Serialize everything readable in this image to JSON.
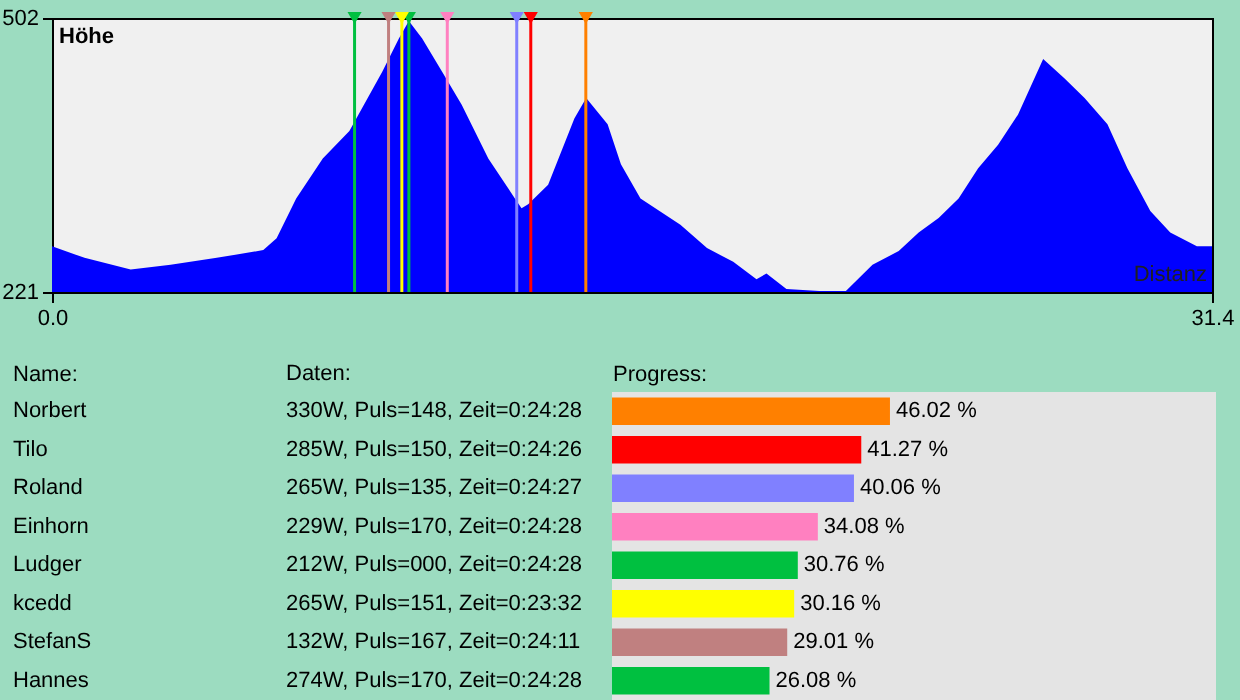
{
  "chart_data": [
    {
      "type": "area",
      "ylabel": "Höhe",
      "xlabel": "Distanz",
      "xlim": [
        0,
        31.4
      ],
      "ylim": [
        221,
        502
      ],
      "xticks": [
        {
          "value": 0,
          "label": "0.0"
        },
        {
          "value": 31.4,
          "label": "31.4"
        }
      ],
      "yticks": [
        221,
        502
      ],
      "grid": false,
      "x": [
        0,
        0.88,
        2.13,
        3.21,
        4.46,
        5.72,
        6.08,
        6.61,
        7.33,
        8.05,
        8.94,
        9.39,
        9.66,
        10.02,
        10.56,
        11.09,
        11.81,
        12.53,
        12.71,
        12.89,
        13.43,
        14.14,
        14.46,
        15.04,
        15.4,
        15.93,
        17.01,
        17.73,
        18.44,
        19.07,
        19.34,
        19.88,
        20.77,
        21.49,
        22.21,
        22.92,
        23.46,
        24.0,
        24.54,
        25.07,
        25.61,
        26.15,
        26.83,
        27.41,
        27.95,
        28.57,
        29.11,
        29.73,
        30.27,
        30.99,
        31.4
      ],
      "series": [
        {
          "color": "#0000ff",
          "values": [
            268,
            256,
            244,
            249,
            256,
            264,
            276,
            317,
            358,
            386,
            447,
            481,
            499,
            481,
            447,
            413,
            358,
            317,
            307,
            311,
            331,
            399,
            420,
            393,
            352,
            317,
            290,
            266,
            252,
            234,
            240,
            224,
            222,
            222,
            249,
            263,
            282,
            297,
            317,
            348,
            372,
            403,
            460,
            440,
            420,
            393,
            348,
            304,
            282,
            268,
            268
          ]
        }
      ],
      "ref_lines": [
        {
          "axis": "x",
          "value": 14.45,
          "color": "#ff8000"
        },
        {
          "axis": "x",
          "value": 12.96,
          "color": "#ff0000"
        },
        {
          "axis": "x",
          "value": 12.58,
          "color": "#8080ff"
        },
        {
          "axis": "x",
          "value": 10.7,
          "color": "#ff80c0"
        },
        {
          "axis": "x",
          "value": 9.66,
          "color": "#00c040"
        },
        {
          "axis": "x",
          "value": 9.47,
          "color": "#ffff00"
        },
        {
          "axis": "x",
          "value": 9.11,
          "color": "#c08080"
        },
        {
          "axis": "x",
          "value": 8.19,
          "color": "#00c040"
        }
      ]
    },
    {
      "type": "bar",
      "orientation": "horizontal",
      "ylabel": "Name:",
      "xlabel": "Progress:",
      "xlim": [
        0,
        100
      ],
      "tick_labels": "y",
      "categories": [
        "Norbert",
        "Tilo",
        "Roland",
        "Einhorn",
        "Ludger",
        "kcedd",
        "StefanS",
        "Hannes"
      ],
      "values": [
        46.02,
        41.27,
        40.06,
        34.08,
        30.76,
        30.16,
        29.01,
        26.08
      ],
      "colors": [
        "#ff8000",
        "#ff0000",
        "#8080ff",
        "#ff80c0",
        "#00c040",
        "#ffff00",
        "#c08080",
        "#00c040"
      ],
      "value_labels": [
        "46.02 %",
        "41.27 %",
        "40.06 %",
        "34.08 %",
        "30.76 %",
        "30.16 %",
        "29.01 %",
        "26.08 %"
      ],
      "annotations": [
        "Daten:",
        "330W, Puls=148, Zeit=0:24:28",
        "285W, Puls=150, Zeit=0:24:26",
        "265W, Puls=135, Zeit=0:24:27",
        "229W, Puls=170, Zeit=0:24:28",
        "212W, Puls=000, Zeit=0:24:28",
        "265W, Puls=151, Zeit=0:23:32",
        "132W, Puls=167, Zeit=0:24:11",
        "274W, Puls=170, Zeit=0:24:28"
      ]
    }
  ]
}
